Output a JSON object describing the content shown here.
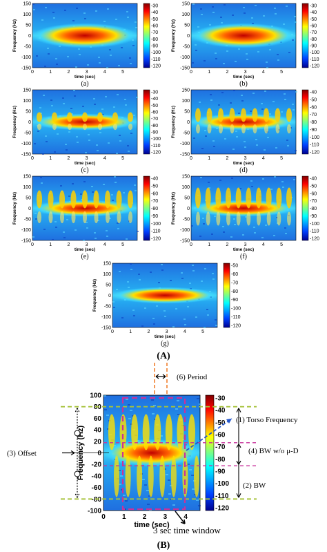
{
  "panels": [
    {
      "caption": "(a)",
      "xlabel": "time (sec)",
      "ylabel": "Frequency (Hz)",
      "yticks": [
        "150",
        "100",
        "50",
        "0",
        "-50",
        "-100",
        "-150"
      ],
      "xticks": [
        "0",
        "1",
        "2",
        "3",
        "4",
        "5"
      ],
      "cbar_ticks": [
        "-30",
        "-40",
        "-50",
        "-60",
        "-70",
        "-80",
        "-90",
        "-100",
        "-110",
        "-120"
      ]
    },
    {
      "caption": "(b)",
      "xlabel": "time (sec)",
      "ylabel": "Frequency (Hz)",
      "yticks": [
        "150",
        "100",
        "50",
        "0",
        "-50",
        "-100",
        "-150"
      ],
      "xticks": [
        "0",
        "1",
        "2",
        "3",
        "4",
        "5"
      ],
      "cbar_ticks": [
        "-30",
        "-40",
        "-50",
        "-60",
        "-70",
        "-80",
        "-90",
        "-100",
        "-110",
        "-120"
      ]
    },
    {
      "caption": "(c)",
      "xlabel": "time (sec)",
      "ylabel": "Frequency (Hz)",
      "yticks": [
        "150",
        "100",
        "50",
        "0",
        "-50",
        "-100",
        "-150"
      ],
      "xticks": [
        "0",
        "1",
        "2",
        "3",
        "4",
        "5"
      ],
      "cbar_ticks": [
        "-30",
        "-40",
        "-50",
        "-60",
        "-70",
        "-80",
        "-90",
        "-100",
        "-110",
        "-120"
      ]
    },
    {
      "caption": "(d)",
      "xlabel": "time (sec)",
      "ylabel": "Frequency (Hz)",
      "yticks": [
        "150",
        "100",
        "50",
        "0",
        "-50",
        "-100",
        "-150"
      ],
      "xticks": [
        "0",
        "1",
        "2",
        "3",
        "4",
        "5"
      ],
      "cbar_ticks": [
        "-40",
        "-50",
        "-60",
        "-70",
        "-80",
        "-90",
        "-100",
        "-110",
        "-120"
      ]
    },
    {
      "caption": "(e)",
      "xlabel": "time (sec)",
      "ylabel": "Frequency (Hz)",
      "yticks": [
        "150",
        "100",
        "50",
        "0",
        "-50",
        "-100",
        "-150"
      ],
      "xticks": [
        "0",
        "1",
        "2",
        "3",
        "4",
        "5"
      ],
      "cbar_ticks": [
        "-40",
        "-50",
        "-60",
        "-70",
        "-80",
        "-90",
        "-100",
        "-110",
        "-120"
      ]
    },
    {
      "caption": "(f)",
      "xlabel": "time (sec)",
      "ylabel": "Frequency (Hz)",
      "yticks": [
        "150",
        "100",
        "50",
        "0",
        "-50",
        "-100",
        "-150"
      ],
      "xticks": [
        "0",
        "1",
        "2",
        "3",
        "4",
        "5"
      ],
      "cbar_ticks": [
        "-40",
        "-50",
        "-60",
        "-70",
        "-80",
        "-90",
        "-100",
        "-110",
        "-120"
      ]
    },
    {
      "caption": "(g)",
      "xlabel": "time (sec)",
      "ylabel": "Frequency (Hz)",
      "yticks": [
        "150",
        "100",
        "50",
        "0",
        "-50",
        "-100",
        "-150"
      ],
      "xticks": [
        "0",
        "1",
        "2",
        "3",
        "4",
        "5"
      ],
      "cbar_ticks": [
        "-50",
        "-60",
        "-70",
        "-80",
        "-90",
        "-100",
        "-110",
        "-120"
      ]
    }
  ],
  "figure_a_label": "(A)",
  "figure_b_label": "(B)",
  "panel_b": {
    "xlabel": "time (sec)",
    "ylabel": "Frequency (Hz)",
    "yticks": [
      "100",
      "80",
      "60",
      "40",
      "20",
      "0",
      "-20",
      "-40",
      "-60",
      "-80",
      "-100"
    ],
    "xticks": [
      "0",
      "1",
      "2",
      "3",
      "4"
    ],
    "cbar_ticks": [
      "-30",
      "-40",
      "-50",
      "-60",
      "-70",
      "-80",
      "-90",
      "-100",
      "-110",
      "-120"
    ],
    "annotations": {
      "period": "(6) Period",
      "torso": "(1) Torso Frequency",
      "bw_wo": "(4) BW w/o μ-D",
      "bw": "(2) BW",
      "offset": "(3) Offset",
      "window": "3 sec time window"
    }
  },
  "colors": {
    "jet_low": "#00008f",
    "jet_mid": "#00c8ff",
    "jet_high": "#ffff00",
    "jet_top": "#800000",
    "dashed_green": "#a6c23a",
    "dashed_magenta": "#c8329b",
    "dashed_orange": "#f08030",
    "arrow_blue": "#2255cc"
  }
}
